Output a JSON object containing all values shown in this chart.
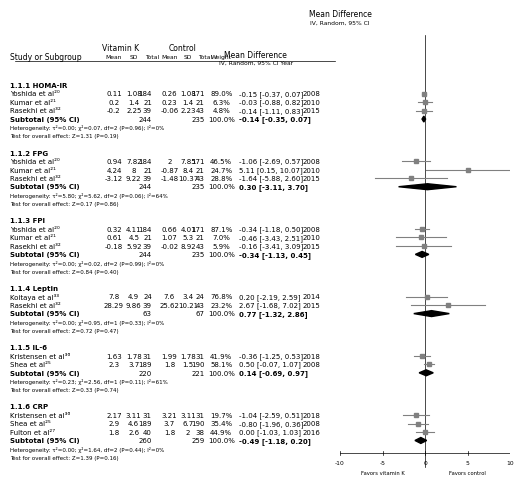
{
  "title_left": "Mean Difference\nIV, Random, 95% CI Year",
  "title_right": "Mean Difference\nIV, Random, 95% CI",
  "col_headers": [
    "Vitamin K",
    "Control"
  ],
  "col_subheaders": [
    "Mean",
    "SD",
    "Total",
    "Mean",
    "SD",
    "Total",
    "Weight"
  ],
  "sections": [
    {
      "label": "1.1.1 HOMA-IR",
      "studies": [
        {
          "name": "Yoshida et al²⁰",
          "vk_mean": 0.11,
          "vk_sd": 1.08,
          "vk_n": 184,
          "c_mean": 0.26,
          "c_sd": 1.08,
          "c_n": 171,
          "weight": "89.0%",
          "md": -0.15,
          "ci_lo": -0.37,
          "ci_hi": 0.07,
          "year": "2008"
        },
        {
          "name": "Kumar et al²¹",
          "vk_mean": 0.2,
          "vk_sd": 1.4,
          "vk_n": 21,
          "c_mean": 0.23,
          "c_sd": 1.4,
          "c_n": 21,
          "weight": "6.3%",
          "md": -0.03,
          "ci_lo": -0.88,
          "ci_hi": 0.82,
          "year": "2010"
        },
        {
          "name": "Rasekhi et al³²",
          "vk_mean": -0.2,
          "vk_sd": 2.25,
          "vk_n": 39,
          "c_mean": -0.06,
          "c_sd": 2.23,
          "c_n": 43,
          "weight": "4.8%",
          "md": -0.14,
          "ci_lo": -1.11,
          "ci_hi": 0.83,
          "year": "2015"
        },
        {
          "name": "Subtotal (95% CI)",
          "vk_n": 244,
          "c_n": 235,
          "weight": "100.0%",
          "md": -0.14,
          "ci_lo": -0.35,
          "ci_hi": 0.07,
          "is_subtotal": true
        }
      ],
      "het": "Heterogeneity: τ²=0.00; χ²=0.07, df=2 (P=0.96); I²=0%",
      "test": "Test for overall effect: Z=1.31 (P=0.19)"
    },
    {
      "label": "1.1.2 FPG",
      "studies": [
        {
          "name": "Yoshida et al²⁰",
          "vk_mean": 0.94,
          "vk_sd": 7.82,
          "vk_n": 184,
          "c_mean": 2,
          "c_sd": 7.85,
          "c_n": 171,
          "weight": "46.5%",
          "md": -1.06,
          "ci_lo": -2.69,
          "ci_hi": 0.57,
          "year": "2008"
        },
        {
          "name": "Kumar et al²¹",
          "vk_mean": 4.24,
          "vk_sd": 8,
          "vk_n": 21,
          "c_mean": -0.87,
          "c_sd": 8.4,
          "c_n": 21,
          "weight": "24.7%",
          "md": 5.11,
          "ci_lo": 0.15,
          "ci_hi": 10.07,
          "year": "2010"
        },
        {
          "name": "Rasekhi et al³²",
          "vk_mean": -3.12,
          "vk_sd": 9.22,
          "vk_n": 39,
          "c_mean": -1.48,
          "c_sd": 10.37,
          "c_n": 43,
          "weight": "28.8%",
          "md": -1.64,
          "ci_lo": -5.88,
          "ci_hi": 2.6,
          "year": "2015"
        },
        {
          "name": "Subtotal (95% CI)",
          "vk_n": 244,
          "c_n": 235,
          "weight": "100.0%",
          "md": 0.3,
          "ci_lo": -3.11,
          "ci_hi": 3.7,
          "is_subtotal": true
        }
      ],
      "het": "Heterogeneity: τ²=5.80; χ²=5.62, df=2 (P=0.06); I²=64%",
      "test": "Test for overall effect: Z=0.17 (P=0.86)"
    },
    {
      "label": "1.1.3 FPI",
      "studies": [
        {
          "name": "Yoshida et al²⁰",
          "vk_mean": 0.32,
          "vk_sd": 4.11,
          "vk_n": 184,
          "c_mean": 0.66,
          "c_sd": 4.01,
          "c_n": 171,
          "weight": "87.1%",
          "md": -0.34,
          "ci_lo": -1.18,
          "ci_hi": 0.5,
          "year": "2008"
        },
        {
          "name": "Kumar et al²¹",
          "vk_mean": 0.61,
          "vk_sd": 4.5,
          "vk_n": 21,
          "c_mean": 1.07,
          "c_sd": 5.3,
          "c_n": 21,
          "weight": "7.0%",
          "md": -0.46,
          "ci_lo": -3.43,
          "ci_hi": 2.51,
          "year": "2010"
        },
        {
          "name": "Rasekhi et al³²",
          "vk_mean": -0.18,
          "vk_sd": 5.92,
          "vk_n": 39,
          "c_mean": -0.02,
          "c_sd": 8.92,
          "c_n": 43,
          "weight": "5.9%",
          "md": -0.16,
          "ci_lo": -3.41,
          "ci_hi": 3.09,
          "year": "2015"
        },
        {
          "name": "Subtotal (95% CI)",
          "vk_n": 244,
          "c_n": 235,
          "weight": "100.0%",
          "md": -0.34,
          "ci_lo": -1.13,
          "ci_hi": 0.45,
          "is_subtotal": true
        }
      ],
      "het": "Heterogeneity: τ²=0.00; χ²=0.02, df=2 (P=0.99); I²=0%",
      "test": "Test for overall effect: Z=0.84 (P=0.40)"
    },
    {
      "label": "1.1.4 Leptin",
      "studies": [
        {
          "name": "Koitaya et al³³",
          "vk_mean": 7.8,
          "vk_sd": 4.9,
          "vk_n": 24,
          "c_mean": 7.6,
          "c_sd": 3.4,
          "c_n": 24,
          "weight": "76.8%",
          "md": 0.2,
          "ci_lo": -2.19,
          "ci_hi": 2.59,
          "year": "2014"
        },
        {
          "name": "Rasekhi et al³²",
          "vk_mean": 28.29,
          "vk_sd": 9.86,
          "vk_n": 39,
          "c_mean": 25.62,
          "c_sd": 10.21,
          "c_n": 43,
          "weight": "23.2%",
          "md": 2.67,
          "ci_lo": -1.68,
          "ci_hi": 7.02,
          "year": "2015"
        },
        {
          "name": "Subtotal (95% CI)",
          "vk_n": 63,
          "c_n": 67,
          "weight": "100.0%",
          "md": 0.77,
          "ci_lo": -1.32,
          "ci_hi": 2.86,
          "is_subtotal": true
        }
      ],
      "het": "Heterogeneity: τ²=0.00; χ²=0.95, df=1 (P=0.33); I²=0%",
      "test": "Test for overall effect: Z=0.72 (P=0.47)"
    },
    {
      "label": "1.1.5 IL-6",
      "studies": [
        {
          "name": "Kristensen et al³⁶",
          "vk_mean": 1.63,
          "vk_sd": 1.78,
          "vk_n": 31,
          "c_mean": 1.99,
          "c_sd": 1.78,
          "c_n": 31,
          "weight": "41.9%",
          "md": -0.36,
          "ci_lo": -1.25,
          "ci_hi": 0.53,
          "year": "2018"
        },
        {
          "name": "Shea et al²⁵",
          "vk_mean": 2.3,
          "vk_sd": 3.7,
          "vk_n": 189,
          "c_mean": 1.8,
          "c_sd": 1.5,
          "c_n": 190,
          "weight": "58.1%",
          "md": 0.5,
          "ci_lo": -0.07,
          "ci_hi": 1.07,
          "year": "2008"
        },
        {
          "name": "Subtotal (95% CI)",
          "vk_n": 220,
          "c_n": 221,
          "weight": "100.0%",
          "md": 0.14,
          "ci_lo": -0.69,
          "ci_hi": 0.97,
          "is_subtotal": true
        }
      ],
      "het": "Heterogeneity: τ²=0.23; χ²=2.56, df=1 (P=0.11); I²=61%",
      "test": "Test for overall effect: Z=0.33 (P=0.74)"
    },
    {
      "label": "1.1.6 CRP",
      "studies": [
        {
          "name": "Kristensen et al³⁶",
          "vk_mean": 2.17,
          "vk_sd": 3.11,
          "vk_n": 31,
          "c_mean": 3.21,
          "c_sd": 3.11,
          "c_n": 31,
          "weight": "19.7%",
          "md": -1.04,
          "ci_lo": -2.59,
          "ci_hi": 0.51,
          "year": "2018"
        },
        {
          "name": "Shea et al²⁵",
          "vk_mean": 2.9,
          "vk_sd": 4.6,
          "vk_n": 189,
          "c_mean": 3.7,
          "c_sd": 6.7,
          "c_n": 190,
          "weight": "35.4%",
          "md": -0.8,
          "ci_lo": -1.96,
          "ci_hi": 0.36,
          "year": "2008"
        },
        {
          "name": "Fulton et al²⁷",
          "vk_mean": 1.8,
          "vk_sd": 2.6,
          "vk_n": 40,
          "c_mean": 1.8,
          "c_sd": 2,
          "c_n": 38,
          "weight": "44.9%",
          "md": 0.0,
          "ci_lo": -1.03,
          "ci_hi": 1.03,
          "year": "2016"
        },
        {
          "name": "Subtotal (95% CI)",
          "vk_n": 260,
          "c_n": 259,
          "weight": "100.0%",
          "md": -0.49,
          "ci_lo": -1.18,
          "ci_hi": 0.2,
          "is_subtotal": true
        }
      ],
      "het": "Heterogeneity: τ²=0.00; χ²=1.64, df=2 (P=0.44); I²=0%",
      "test": "Test for overall effect: Z=1.39 (P=0.16)"
    }
  ],
  "xmin": -10,
  "xmax": 10,
  "xticks": [
    -10,
    -5,
    0,
    5,
    10
  ],
  "xlabel_left": "Favors vitamin K",
  "xlabel_right": "Favors control",
  "axis_zero": 0,
  "bg_color": "#ffffff",
  "text_color": "#000000",
  "study_color": "#808080",
  "subtotal_color": "#000000",
  "diamond_color": "#000000",
  "line_color": "#000000"
}
